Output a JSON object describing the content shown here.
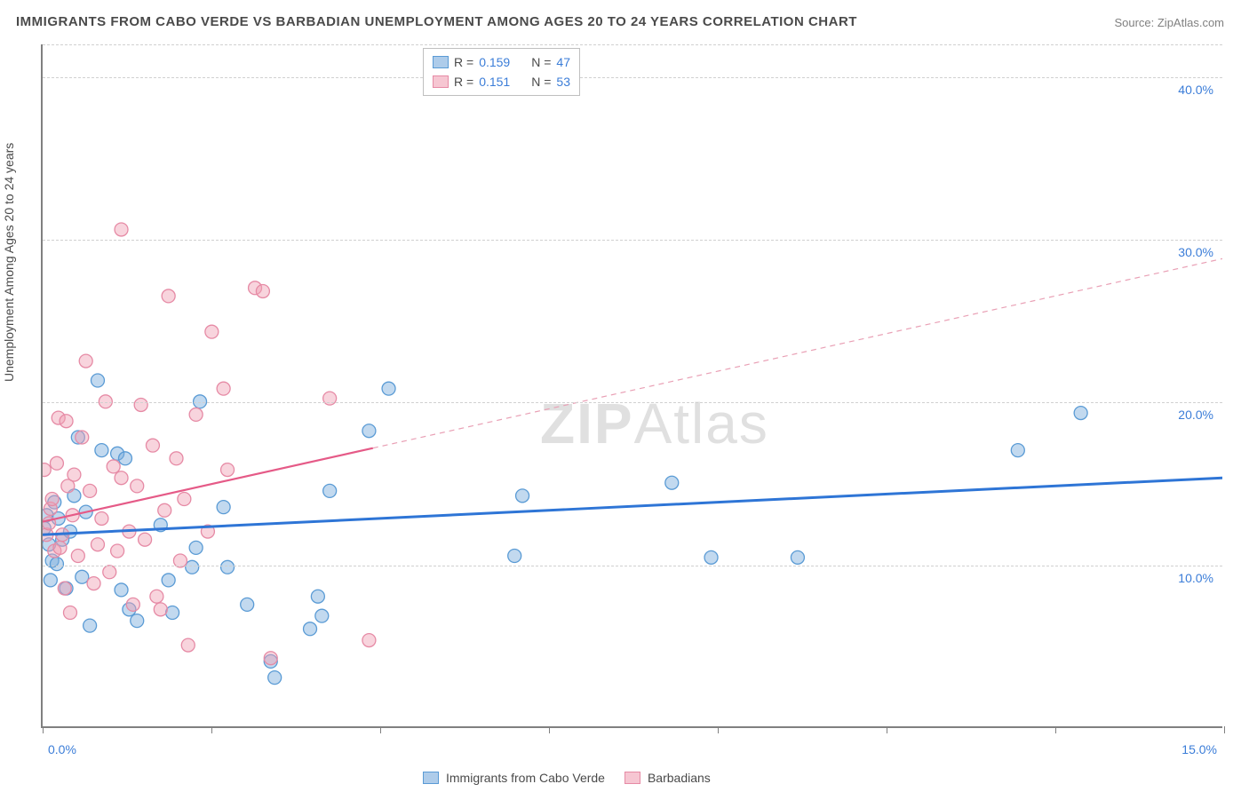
{
  "title": "IMMIGRANTS FROM CABO VERDE VS BARBADIAN UNEMPLOYMENT AMONG AGES 20 TO 24 YEARS CORRELATION CHART",
  "source": "Source: ZipAtlas.com",
  "watermark_bold": "ZIP",
  "watermark_rest": "Atlas",
  "y_axis_label": "Unemployment Among Ages 20 to 24 years",
  "chart": {
    "type": "scatter",
    "background_color": "#ffffff",
    "grid_color": "#d0d0d0",
    "axis_color": "#808080",
    "xlim": [
      0,
      15
    ],
    "ylim": [
      0,
      42
    ],
    "x_ticks": [
      0,
      2.14,
      4.29,
      6.43,
      8.57,
      10.71,
      12.86,
      15
    ],
    "x_tick_labels_shown": {
      "0": "0.0%",
      "15": "15.0%"
    },
    "y_grid_at": [
      10,
      20,
      30,
      40,
      42
    ],
    "y_tick_labels": {
      "10": "10.0%",
      "20": "20.0%",
      "30": "30.0%",
      "40": "40.0%"
    },
    "marker_radius": 7.5,
    "series": [
      {
        "name": "Immigrants from Cabo Verde",
        "color_fill": "rgba(120,170,220,0.45)",
        "color_stroke": "#5a9bd5",
        "trend_color": "#2e75d6",
        "R": "0.159",
        "N": "47",
        "trend": {
          "x1": 0,
          "y1": 11.8,
          "x2": 15,
          "y2": 15.3,
          "solid_end_x": 15
        },
        "points": [
          [
            0.02,
            12.2
          ],
          [
            0.05,
            13.0
          ],
          [
            0.08,
            11.2
          ],
          [
            0.1,
            9.0
          ],
          [
            0.12,
            10.2
          ],
          [
            0.15,
            13.8
          ],
          [
            0.18,
            10.0
          ],
          [
            0.2,
            12.8
          ],
          [
            0.25,
            11.5
          ],
          [
            0.3,
            8.5
          ],
          [
            0.35,
            12.0
          ],
          [
            0.4,
            14.2
          ],
          [
            0.45,
            17.8
          ],
          [
            0.5,
            9.2
          ],
          [
            0.55,
            13.2
          ],
          [
            0.6,
            6.2
          ],
          [
            0.7,
            21.3
          ],
          [
            0.75,
            17.0
          ],
          [
            0.95,
            16.8
          ],
          [
            1.0,
            8.4
          ],
          [
            1.05,
            16.5
          ],
          [
            1.1,
            7.2
          ],
          [
            1.2,
            6.5
          ],
          [
            1.5,
            12.4
          ],
          [
            1.6,
            9.0
          ],
          [
            1.65,
            7.0
          ],
          [
            1.9,
            9.8
          ],
          [
            1.95,
            11.0
          ],
          [
            2.0,
            20.0
          ],
          [
            2.3,
            13.5
          ],
          [
            2.35,
            9.8
          ],
          [
            2.6,
            7.5
          ],
          [
            2.9,
            4.0
          ],
          [
            2.95,
            3.0
          ],
          [
            3.4,
            6.0
          ],
          [
            3.5,
            8.0
          ],
          [
            3.55,
            6.8
          ],
          [
            3.65,
            14.5
          ],
          [
            4.15,
            18.2
          ],
          [
            4.4,
            20.8
          ],
          [
            6.0,
            10.5
          ],
          [
            6.1,
            14.2
          ],
          [
            8.0,
            15.0
          ],
          [
            8.5,
            10.4
          ],
          [
            9.6,
            10.4
          ],
          [
            12.4,
            17.0
          ],
          [
            13.2,
            19.3
          ]
        ]
      },
      {
        "name": "Barbadians",
        "color_fill": "rgba(240,160,180,0.45)",
        "color_stroke": "#e68aa5",
        "trend_color": "#e55a87",
        "R": "0.151",
        "N": "53",
        "trend": {
          "x1": 0,
          "y1": 12.6,
          "x2": 15,
          "y2": 28.8,
          "solid_end_x": 4.2
        },
        "points": [
          [
            0.02,
            15.8
          ],
          [
            0.05,
            11.8
          ],
          [
            0.08,
            12.5
          ],
          [
            0.1,
            13.4
          ],
          [
            0.12,
            14.0
          ],
          [
            0.15,
            10.8
          ],
          [
            0.18,
            16.2
          ],
          [
            0.2,
            19.0
          ],
          [
            0.22,
            11.0
          ],
          [
            0.25,
            11.8
          ],
          [
            0.28,
            8.5
          ],
          [
            0.3,
            18.8
          ],
          [
            0.32,
            14.8
          ],
          [
            0.35,
            7.0
          ],
          [
            0.38,
            13.0
          ],
          [
            0.4,
            15.5
          ],
          [
            0.45,
            10.5
          ],
          [
            0.5,
            17.8
          ],
          [
            0.55,
            22.5
          ],
          [
            0.6,
            14.5
          ],
          [
            0.65,
            8.8
          ],
          [
            0.7,
            11.2
          ],
          [
            0.75,
            12.8
          ],
          [
            0.8,
            20.0
          ],
          [
            0.85,
            9.5
          ],
          [
            0.9,
            16.0
          ],
          [
            0.95,
            10.8
          ],
          [
            1.0,
            30.6
          ],
          [
            1.0,
            15.3
          ],
          [
            1.1,
            12.0
          ],
          [
            1.15,
            7.5
          ],
          [
            1.2,
            14.8
          ],
          [
            1.25,
            19.8
          ],
          [
            1.3,
            11.5
          ],
          [
            1.4,
            17.3
          ],
          [
            1.45,
            8.0
          ],
          [
            1.5,
            7.2
          ],
          [
            1.55,
            13.3
          ],
          [
            1.6,
            26.5
          ],
          [
            1.7,
            16.5
          ],
          [
            1.75,
            10.2
          ],
          [
            1.8,
            14.0
          ],
          [
            1.85,
            5.0
          ],
          [
            1.95,
            19.2
          ],
          [
            2.1,
            12.0
          ],
          [
            2.15,
            24.3
          ],
          [
            2.3,
            20.8
          ],
          [
            2.35,
            15.8
          ],
          [
            2.7,
            27.0
          ],
          [
            2.8,
            26.8
          ],
          [
            2.9,
            4.2
          ],
          [
            3.65,
            20.2
          ],
          [
            4.15,
            5.3
          ]
        ]
      }
    ]
  },
  "legend_top": {
    "r_label": "R =",
    "n_label": "N ="
  },
  "legend_bottom_labels": [
    "Immigrants from Cabo Verde",
    "Barbadians"
  ]
}
